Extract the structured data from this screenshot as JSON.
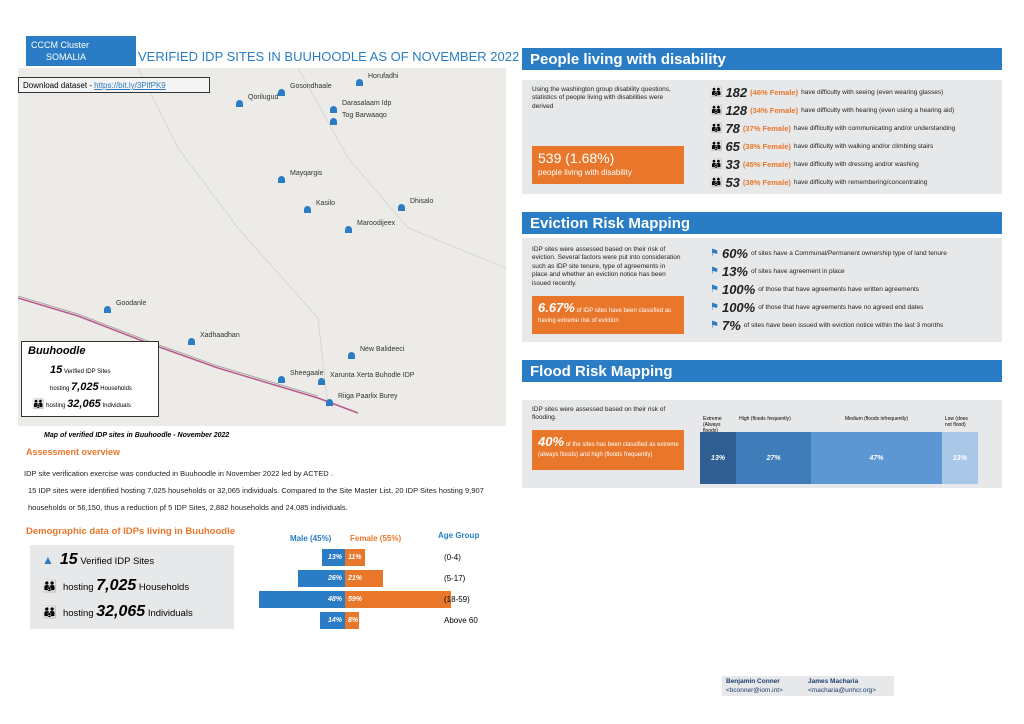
{
  "header": {
    "logo_line1": "CCCM Cluster",
    "logo_line2": "SOMALIA",
    "title": "VERIFIED IDP SITES IN BUUHOODLE AS OF NOVEMBER 2022"
  },
  "map": {
    "download_label": "Download dataset - ",
    "download_link": "https://bit.ly/3PlfPK9",
    "places": [
      "Horufadhi",
      "Qorilugud",
      "Gosondhaale",
      "Darasalaam Idp",
      "Tog Barwaaqo",
      "Mayqargis",
      "Kasilo",
      "Dhisalo",
      "Maroodijeex",
      "Goodanle",
      "Xadhaadhan",
      "New Balideeci",
      "Sheegaale",
      "Xarunta Xerta Buhodle IDP",
      "Riiga Paarlix Burey"
    ],
    "summary": {
      "name": "Buuhoodle",
      "sites": "15",
      "sites_label": "Verified IDP Sites",
      "hosting1": "hosting",
      "households": "7,025",
      "households_label": "Households",
      "hosting2": "hosting",
      "individuals": "32,065",
      "individuals_label": "Individuals"
    },
    "caption": "Map of verified IDP sites in Buuhoodle - November 2022"
  },
  "assessment": {
    "heading": "Assessment overview",
    "paragraphs": [
      "IDP site verification exercise was conducted in Buuhoodle in November 2022 led by ACTED .",
      "15 IDP sites were identified hosting 7,025 households or 32,065 individuals. Compared to the Site Master List, 20 IDP Sites hosting 9,907 households or  56,150, thus a reduction pf 5 IDP Sites, 2,882 households and 24,085 individuals."
    ]
  },
  "demographics": {
    "heading": "Demographic data of IDPs living in Buuhoodle",
    "summary": [
      {
        "value": "15",
        "label": "Verified IDP Sites"
      },
      {
        "prefix": "hosting",
        "value": "7,025",
        "label": "Households"
      },
      {
        "prefix": "hosting",
        "value": "32,065",
        "label": "Individuals"
      }
    ],
    "pyramid": {
      "male_header": "Male (45%)",
      "female_header": "Female (55%)",
      "age_header": "Age Group",
      "age_groups": [
        "(0-4)",
        "(5-17)",
        "(18-59)",
        "Above 60"
      ],
      "male": [
        13,
        26,
        48,
        14
      ],
      "male_labels": [
        "13%",
        "26%",
        "48%",
        "14%"
      ],
      "female": [
        11,
        21,
        59,
        8
      ],
      "female_labels": [
        "11%",
        "21%",
        "59%",
        "8%"
      ],
      "male_color": "#2a7dc4",
      "female_color": "#e9772b"
    }
  },
  "disability": {
    "heading": "People living with disability",
    "intro": "Using the washington group disability questions, statistics of people living with disabilities were derived",
    "highlight_value": "539 (1.68%)",
    "highlight_text": "people living with disability",
    "items": [
      {
        "count": "182",
        "female": "(46% Female)",
        "text": "have difficulty with seeing (even wearing glasses)"
      },
      {
        "count": "128",
        "female": "(34% Female)",
        "text": "have difficulty with hearing (even using a hearing aid)"
      },
      {
        "count": "78",
        "female": "(37% Female)",
        "text": "have difficulty with communicating and/or understanding"
      },
      {
        "count": "65",
        "female": "(38% Female)",
        "text": "have difficulty with walking and/or climbing stairs"
      },
      {
        "count": "33",
        "female": "(45% Female)",
        "text": "have difficulty with dressing and/or washing"
      },
      {
        "count": "53",
        "female": "(38% Female)",
        "text": "have difficulty with remembering/concentrating"
      }
    ]
  },
  "eviction": {
    "heading": "Eviction Risk Mapping",
    "intro": "IDP sites were assessed based on their risk of eviction. Several factors were put into consideration such as IDP site tenure, type of agreements in place and whether an eviction notice has been issued recently.",
    "highlight_value": "6.67%",
    "highlight_text": "of IDP sites have been classified as having extreme risk of eviction",
    "items": [
      {
        "value": "60%",
        "text": "of sites have a Communal/Permanent ownership type of land tenure"
      },
      {
        "value": "13%",
        "text": "of sites have agreement in place"
      },
      {
        "value": "100%",
        "text": "of those that have agreements have written agreements"
      },
      {
        "value": "100%",
        "text": "of those that have agreements have no agreed end dates"
      },
      {
        "value": "7%",
        "text": "of sites have been issued with eviction notice within the last 3 months"
      }
    ]
  },
  "flood": {
    "heading": "Flood Risk Mapping",
    "intro": "IDP sites were assessed based on their risk of flooding.",
    "highlight_value": "40%",
    "highlight_text": "of the sites has been classified as extreme (always floods) and high (floods frequently)",
    "categories": [
      "Extreme (Always floods)",
      "High (floods frequently)",
      "Medium (floods infrequently)",
      "Low (does not flood)"
    ],
    "values": [
      13,
      27,
      47,
      13
    ],
    "value_labels": [
      "13%",
      "27%",
      "47%",
      "13%"
    ],
    "colors": [
      "#2f5f92",
      "#3f7cba",
      "#5c97d3",
      "#a9c8e8"
    ]
  },
  "footer": {
    "contacts": [
      {
        "name": "Benjamin Conner",
        "email": "<bconner@iom.int>"
      },
      {
        "name": "James Macharia",
        "email": "<macharia@unhcr.org>"
      }
    ]
  }
}
